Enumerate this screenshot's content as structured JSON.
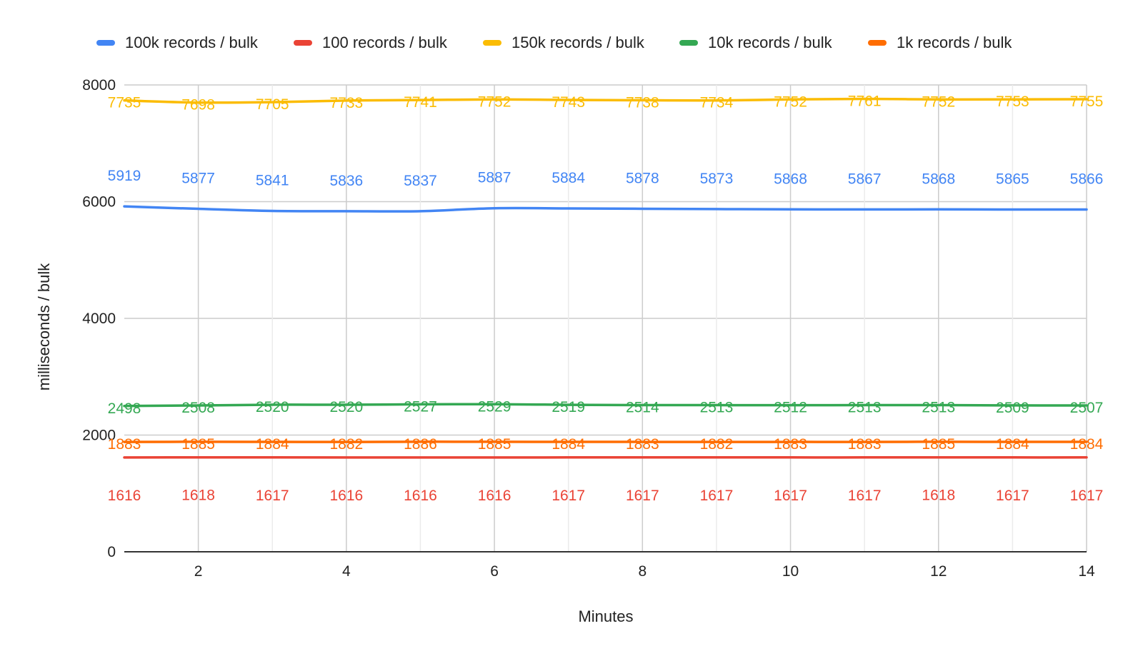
{
  "chart_data": {
    "type": "line",
    "title": "",
    "xlabel": "Minutes",
    "ylabel": "milliseconds / bulk",
    "x": [
      1,
      2,
      3,
      4,
      5,
      6,
      7,
      8,
      9,
      10,
      11,
      12,
      13,
      14
    ],
    "xlim": [
      1,
      14
    ],
    "ylim": [
      0,
      8000
    ],
    "x_ticks": [
      "2",
      "4",
      "6",
      "8",
      "10",
      "12",
      "14"
    ],
    "y_ticks": [
      "0",
      "2000",
      "4000",
      "6000",
      "8000"
    ],
    "grid": true,
    "legend_position": "top",
    "series": [
      {
        "name": "100k records / bulk",
        "color": "#4285F4",
        "values": [
          5919,
          5877,
          5841,
          5836,
          5837,
          5887,
          5884,
          5878,
          5873,
          5868,
          5867,
          5868,
          5865,
          5866
        ]
      },
      {
        "name": "100 records / bulk",
        "color": "#EA4335",
        "values": [
          1616,
          1618,
          1617,
          1616,
          1616,
          1616,
          1617,
          1617,
          1617,
          1617,
          1617,
          1618,
          1617,
          1617
        ]
      },
      {
        "name": "150k records / bulk",
        "color": "#FBBC04",
        "values": [
          7735,
          7698,
          7705,
          7733,
          7741,
          7752,
          7743,
          7738,
          7734,
          7752,
          7761,
          7752,
          7753,
          7755
        ]
      },
      {
        "name": "10k records / bulk",
        "color": "#34A853",
        "values": [
          2498,
          2508,
          2520,
          2520,
          2527,
          2529,
          2519,
          2514,
          2513,
          2512,
          2513,
          2513,
          2509,
          2507
        ]
      },
      {
        "name": "1k records / bulk",
        "color": "#FF6D01",
        "values": [
          1883,
          1885,
          1884,
          1882,
          1886,
          1885,
          1884,
          1883,
          1882,
          1883,
          1883,
          1885,
          1884,
          1884
        ]
      }
    ]
  }
}
